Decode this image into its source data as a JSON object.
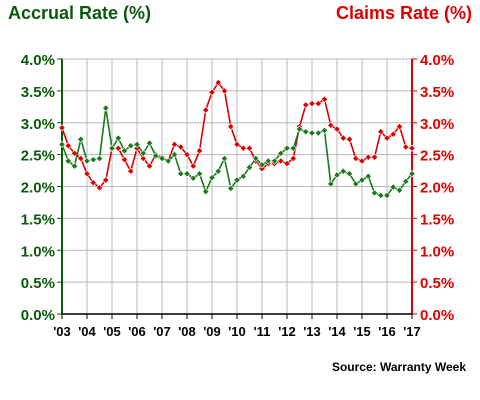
{
  "chart_data": {
    "type": "line",
    "left_title": "Accrual Rate (%)",
    "right_title": "Claims Rate (%)",
    "source": "Source: Warranty Week",
    "y_ticks": [
      "0.0%",
      "0.5%",
      "1.0%",
      "1.5%",
      "2.0%",
      "2.5%",
      "3.0%",
      "3.5%",
      "4.0%"
    ],
    "ylim": [
      0,
      4
    ],
    "x_labels": [
      "'03",
      "'04",
      "'05",
      "'06",
      "'07",
      "'08",
      "'09",
      "'10",
      "'11",
      "'12",
      "'13",
      "'14",
      "'15",
      "'16",
      "'17"
    ],
    "colors": {
      "left": "#0a5a0a",
      "right": "#e00000",
      "accrual": "#1a7a1a",
      "claims": "#dd0000",
      "grid": "#b8b8b8"
    },
    "series": [
      {
        "name": "Accrual Rate",
        "axis": "left",
        "values": [
          2.66,
          2.4,
          2.32,
          2.74,
          2.4,
          2.42,
          2.44,
          3.23,
          2.6,
          2.76,
          2.56,
          2.64,
          2.66,
          2.52,
          2.68,
          2.48,
          2.44,
          2.4,
          2.5,
          2.2,
          2.2,
          2.13,
          2.2,
          1.92,
          2.14,
          2.24,
          2.44,
          1.97,
          2.1,
          2.16,
          2.3,
          2.44,
          2.34,
          2.4,
          2.4,
          2.52,
          2.6,
          2.6,
          2.9,
          2.86,
          2.84,
          2.84,
          2.88,
          2.04,
          2.18,
          2.24,
          2.2,
          2.04,
          2.1,
          2.16,
          1.9,
          1.86,
          1.86,
          1.99,
          1.94,
          2.08,
          2.2
        ]
      },
      {
        "name": "Claims Rate",
        "axis": "right",
        "values": [
          2.92,
          2.64,
          2.52,
          2.44,
          2.2,
          2.06,
          1.98,
          2.1,
          2.6,
          2.6,
          2.42,
          2.24,
          2.6,
          2.44,
          2.32,
          2.5,
          2.46,
          2.4,
          2.66,
          2.62,
          2.5,
          2.32,
          2.56,
          3.2,
          3.48,
          3.63,
          3.5,
          2.94,
          2.66,
          2.6,
          2.6,
          2.4,
          2.28,
          2.36,
          2.36,
          2.4,
          2.36,
          2.44,
          2.94,
          3.28,
          3.3,
          3.3,
          3.37,
          2.96,
          2.9,
          2.76,
          2.74,
          2.44,
          2.4,
          2.46,
          2.46,
          2.86,
          2.76,
          2.82,
          2.94,
          2.62,
          2.6
        ]
      }
    ]
  }
}
